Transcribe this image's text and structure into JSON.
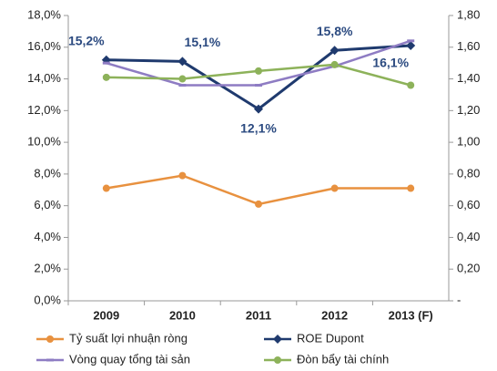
{
  "chart_data": {
    "type": "line",
    "categories": [
      "2009",
      "2010",
      "2011",
      "2012",
      "2013 (F)"
    ],
    "series": [
      {
        "name": "Tỷ suất lợi nhuận ròng",
        "color": "#e8913f",
        "marker": "circle",
        "values": [
          7.1,
          7.9,
          6.1,
          7.1,
          7.1
        ]
      },
      {
        "name": "ROE Dupont",
        "color": "#1f3a6e",
        "marker": "diamond",
        "values": [
          15.2,
          15.1,
          12.1,
          15.8,
          16.1
        ],
        "value_labels": [
          "15,2%",
          "15,1%",
          "12,1%",
          "15,8%",
          "16,1%"
        ]
      },
      {
        "name": "Vòng quay tổng tài sản",
        "color": "#8e7cc3",
        "marker": "dash",
        "axis": "y2",
        "values": [
          1.5,
          1.36,
          1.36,
          1.48,
          1.64
        ]
      },
      {
        "name": "Đòn bẩy tài chính",
        "color": "#8db25a",
        "marker": "circle",
        "axis": "y2",
        "values": [
          1.41,
          1.4,
          1.45,
          1.49,
          1.36
        ]
      }
    ],
    "ylim": [
      0,
      18
    ],
    "yticks": [
      {
        "value": 0,
        "label": "0,0%"
      },
      {
        "value": 2,
        "label": "2,0%"
      },
      {
        "value": 4,
        "label": "4,0%"
      },
      {
        "value": 6,
        "label": "6,0%"
      },
      {
        "value": 8,
        "label": "8,0%"
      },
      {
        "value": 10,
        "label": "10,0%"
      },
      {
        "value": 12,
        "label": "12,0%"
      },
      {
        "value": 14,
        "label": "14,0%"
      },
      {
        "value": 16,
        "label": "16,0%"
      },
      {
        "value": 18,
        "label": "18,0%"
      }
    ],
    "y2lim": [
      0,
      1.8
    ],
    "y2ticks": [
      {
        "value": 0,
        "label": "-"
      },
      {
        "value": 0.2,
        "label": "0,20"
      },
      {
        "value": 0.4,
        "label": "0,40"
      },
      {
        "value": 0.6,
        "label": "0,60"
      },
      {
        "value": 0.8,
        "label": "0,80"
      },
      {
        "value": 1.0,
        "label": "1,00"
      },
      {
        "value": 1.2,
        "label": "1,20"
      },
      {
        "value": 1.4,
        "label": "1,40"
      },
      {
        "value": 1.6,
        "label": "1,60"
      },
      {
        "value": 1.8,
        "label": "1,80"
      }
    ],
    "grid": false
  }
}
